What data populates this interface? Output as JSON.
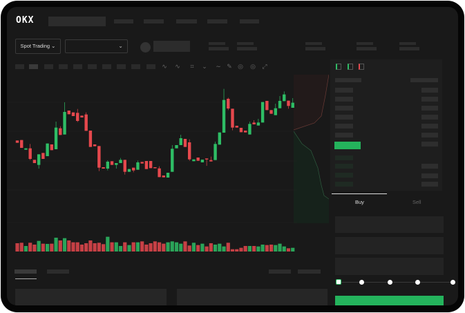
{
  "header": {
    "logo": "OKX"
  },
  "market": {
    "mode_label": "Spot Trading",
    "mode_chevron": "⌄",
    "pair_chevron": "⌄"
  },
  "orderbook": {
    "view_icons": [
      "both-sides-icon",
      "bids-only-icon",
      "asks-only-icon"
    ]
  },
  "trade": {
    "tabs": [
      "Buy",
      "Sell"
    ],
    "active_tab": "Buy",
    "slider_level_percent": 0,
    "slider_stops": [
      "0",
      "25",
      "50",
      "75",
      "100"
    ]
  },
  "colors": {
    "up": "#2ebd65",
    "down": "#e5484d",
    "accent": "#24b35c",
    "background": "#191919"
  },
  "chart_data": {
    "type": "candlestick",
    "title": "",
    "xlabel": "",
    "ylabel": "",
    "grid": true,
    "candles": [
      [
        250,
        250,
        240,
        240
      ],
      [
        252,
        252,
        218,
        218
      ],
      [
        210,
        216,
        210,
        216
      ],
      [
        216,
        235,
        165,
        170
      ],
      [
        166,
        166,
        152,
        152
      ],
      [
        144,
        190,
        128,
        190
      ],
      [
        196,
        196,
        170,
        170
      ],
      [
        182,
        237,
        182,
        237
      ],
      [
        233,
        233,
        208,
        208
      ],
      [
        212,
        332,
        212,
        306
      ],
      [
        303,
        312,
        274,
        274
      ],
      [
        276,
        416,
        276,
        374
      ],
      [
        380,
        380,
        364,
        364
      ],
      [
        372,
        372,
        356,
        356
      ],
      [
        370,
        387,
        330,
        335
      ],
      [
        358,
        358,
        350,
        350
      ],
      [
        363,
        372,
        292,
        292
      ],
      [
        293,
        293,
        222,
        222
      ],
      [
        233,
        233,
        225,
        225
      ],
      [
        226,
        226,
        117,
        132
      ],
      [
        134,
        134,
        128,
        128
      ],
      [
        128,
        164,
        120,
        158
      ],
      [
        160,
        160,
        144,
        144
      ],
      [
        144,
        152,
        128,
        152
      ],
      [
        152,
        174,
        152,
        166
      ],
      [
        166,
        166,
        102,
        114
      ],
      [
        114,
        126,
        114,
        126
      ],
      [
        132,
        132,
        112,
        120
      ],
      [
        123,
        163,
        123,
        155
      ],
      [
        157,
        157,
        150,
        150
      ],
      [
        161,
        161,
        126,
        126
      ],
      [
        161,
        161,
        130,
        130
      ],
      [
        134,
        134,
        130,
        130
      ],
      [
        129,
        138,
        91,
        91
      ],
      [
        98,
        98,
        90,
        90
      ],
      [
        89,
        110,
        89,
        110
      ],
      [
        114,
        230,
        114,
        214
      ],
      [
        216,
        230,
        216,
        230
      ],
      [
        230,
        275,
        230,
        260
      ],
      [
        257,
        257,
        222,
        222
      ],
      [
        242,
        255,
        162,
        168
      ],
      [
        160,
        168,
        160,
        168
      ],
      [
        176,
        176,
        162,
        162
      ],
      [
        155,
        167,
        155,
        167
      ],
      [
        172,
        172,
        140,
        168
      ],
      [
        165,
        180,
        159,
        159
      ],
      [
        165,
        245,
        165,
        235
      ],
      [
        232,
        285,
        232,
        285
      ],
      [
        284,
        474,
        284,
        426
      ],
      [
        431,
        436,
        382,
        389
      ],
      [
        388,
        388,
        294,
        306
      ],
      [
        314,
        314,
        306,
        306
      ],
      [
        305,
        305,
        286,
        286
      ],
      [
        293,
        293,
        285,
        285
      ],
      [
        276,
        332,
        276,
        322
      ],
      [
        328,
        338,
        320,
        320
      ],
      [
        315,
        344,
        315,
        328
      ],
      [
        328,
        417,
        328,
        417
      ],
      [
        422,
        422,
        382,
        382
      ],
      [
        382,
        382,
        366,
        366
      ],
      [
        360,
        410,
        360,
        390
      ],
      [
        390,
        443,
        390,
        422
      ],
      [
        421,
        463,
        421,
        450
      ],
      [
        423,
        423,
        388,
        400
      ],
      [
        392,
        434,
        392,
        414
      ]
    ],
    "candle_format": [
      "open",
      "high",
      "low",
      "close"
    ],
    "volume": [
      36,
      38,
      24,
      38,
      30,
      46,
      34,
      33,
      34,
      60,
      48,
      58,
      48,
      40,
      40,
      30,
      36,
      48,
      36,
      38,
      32,
      64,
      40,
      40,
      24,
      40,
      28,
      40,
      40,
      44,
      30,
      36,
      44,
      40,
      34,
      40,
      44,
      40,
      34,
      44,
      26,
      38,
      28,
      34,
      22,
      36,
      30,
      34,
      22,
      38,
      10,
      10,
      16,
      24,
      24,
      24,
      22,
      30,
      28,
      30,
      28,
      34,
      22,
      14,
      16
    ]
  }
}
